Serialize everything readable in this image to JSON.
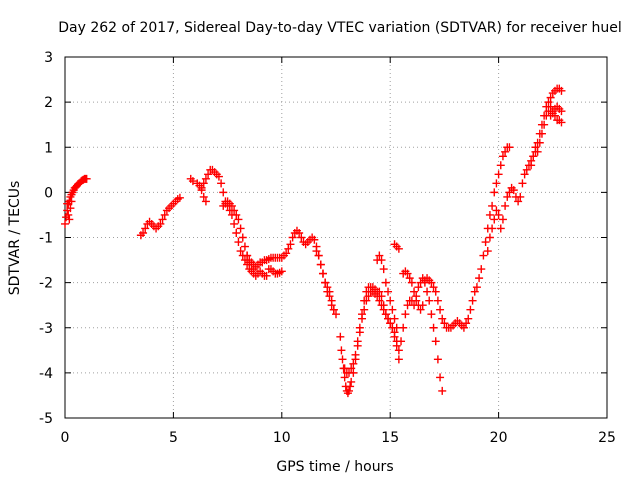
{
  "chart_data": {
    "type": "scatter",
    "title": "Day 262 of 2017, Sidereal Day-to-day VTEC variation (SDTVAR) for receiver huel",
    "xlabel": "GPS time / hours",
    "ylabel": "SDTVAR / TECUs",
    "xlim": [
      0,
      25
    ],
    "ylim": [
      -5,
      3
    ],
    "x_ticks": [
      0,
      5,
      10,
      15,
      20,
      25
    ],
    "y_ticks": [
      -5,
      -4,
      -3,
      -2,
      -1,
      0,
      1,
      2,
      3
    ],
    "grid": true,
    "marker": "+",
    "color": "#ff0000",
    "series": [
      {
        "x": [
          0.0,
          0.05,
          0.1,
          0.15,
          0.2,
          0.25,
          0.3,
          0.35,
          0.4,
          0.45,
          0.5,
          0.55,
          0.6,
          0.65,
          0.7,
          0.75,
          0.8,
          0.85,
          0.9,
          0.95,
          1.0
        ],
        "y": [
          -0.7,
          -0.55,
          -0.4,
          -0.25,
          -0.2,
          -0.1,
          -0.05,
          0.0,
          0.05,
          0.1,
          0.12,
          0.15,
          0.18,
          0.2,
          0.22,
          0.25,
          0.27,
          0.28,
          0.3,
          0.3,
          0.3
        ]
      },
      {
        "x": [
          0.1,
          0.15,
          0.2,
          0.25,
          0.3
        ],
        "y": [
          -0.25,
          -0.5,
          -0.6,
          -0.35,
          -0.2
        ]
      },
      {
        "x": [
          3.5,
          3.6,
          3.7,
          3.8,
          3.9,
          4.0,
          4.1,
          4.2,
          4.3,
          4.4,
          4.5,
          4.6,
          4.7,
          4.8,
          4.9,
          5.0,
          5.1,
          5.2,
          5.3
        ],
        "y": [
          -0.95,
          -0.9,
          -0.8,
          -0.7,
          -0.65,
          -0.7,
          -0.75,
          -0.8,
          -0.75,
          -0.7,
          -0.6,
          -0.5,
          -0.4,
          -0.35,
          -0.3,
          -0.25,
          -0.2,
          -0.15,
          -0.12
        ]
      },
      {
        "x": [
          5.8,
          5.9,
          6.1,
          6.2,
          6.3,
          6.4,
          6.5,
          6.6,
          6.7,
          6.8,
          6.9,
          7.0,
          7.1,
          7.2,
          7.3,
          7.4,
          7.5,
          7.6,
          7.7,
          7.8,
          7.9,
          8.0,
          8.1,
          8.2,
          8.3,
          8.4,
          8.5,
          8.6,
          8.7,
          8.8,
          8.9,
          9.0,
          9.1,
          9.2,
          9.3,
          9.4,
          9.5,
          9.6,
          9.7,
          9.8,
          9.9,
          10.0
        ],
        "y": [
          0.3,
          0.25,
          0.2,
          0.15,
          0.1,
          0.2,
          0.3,
          0.4,
          0.5,
          0.5,
          0.45,
          0.4,
          0.35,
          0.2,
          0.0,
          -0.2,
          -0.3,
          -0.4,
          -0.5,
          -0.7,
          -0.9,
          -1.1,
          -1.3,
          -1.4,
          -1.5,
          -1.6,
          -1.7,
          -1.75,
          -1.8,
          -1.85,
          -1.8,
          -1.75,
          -1.8,
          -1.85,
          -1.85,
          -1.7,
          -1.7,
          -1.75,
          -1.8,
          -1.8,
          -1.78,
          -1.75
        ]
      },
      {
        "x": [
          6.3,
          6.4,
          6.5,
          7.3,
          7.4,
          7.5,
          7.6,
          7.7,
          7.8,
          7.9,
          8.0,
          8.1,
          8.2,
          8.3,
          8.4,
          8.5,
          8.6,
          8.7
        ],
        "y": [
          0.05,
          -0.1,
          -0.2,
          -0.3,
          -0.25,
          -0.2,
          -0.25,
          -0.3,
          -0.4,
          -0.5,
          -0.6,
          -0.8,
          -1.0,
          -1.2,
          -1.4,
          -1.55,
          -1.6,
          -1.7
        ]
      },
      {
        "x": [
          8.4,
          8.5,
          8.6,
          8.7,
          8.8,
          8.9,
          9.0,
          9.1,
          9.2,
          9.3,
          9.4,
          9.5,
          9.6,
          9.7,
          9.8,
          9.9,
          10.0,
          10.1,
          10.2,
          10.3,
          10.4,
          10.5,
          10.6,
          10.7,
          10.8,
          10.9,
          11.0,
          11.1,
          11.2,
          11.3,
          11.4,
          11.5,
          11.6,
          11.7,
          11.8,
          11.9,
          12.0,
          12.1,
          12.2,
          12.3,
          12.4,
          12.5
        ],
        "y": [
          -1.4,
          -1.5,
          -1.55,
          -1.6,
          -1.65,
          -1.6,
          -1.55,
          -1.55,
          -1.5,
          -1.5,
          -1.48,
          -1.45,
          -1.45,
          -1.45,
          -1.45,
          -1.45,
          -1.45,
          -1.4,
          -1.35,
          -1.25,
          -1.15,
          -1.0,
          -0.9,
          -0.85,
          -0.9,
          -1.0,
          -1.1,
          -1.15,
          -1.1,
          -1.05,
          -1.0,
          -1.05,
          -1.2,
          -1.4,
          -1.6,
          -1.8,
          -2.0,
          -2.1,
          -2.2,
          -2.4,
          -2.6,
          -2.7
        ]
      },
      {
        "x": [
          11.6,
          11.7,
          11.8,
          11.9,
          12.0,
          12.1,
          12.2,
          12.3,
          12.4
        ],
        "y": [
          -1.3,
          -1.4,
          -1.6,
          -1.8,
          -2.0,
          -2.2,
          -2.3,
          -2.5,
          -2.6
        ]
      },
      {
        "x": [
          12.7,
          12.75,
          12.8,
          12.85,
          12.9,
          12.95,
          13.0,
          13.05,
          13.1,
          13.15,
          13.2,
          13.3,
          13.4,
          13.5,
          13.6,
          13.7,
          13.8,
          13.9,
          14.0,
          14.1,
          14.2,
          14.3,
          14.4,
          14.5,
          14.6,
          14.7,
          14.8,
          14.9,
          15.0,
          15.1,
          15.2,
          15.3,
          15.4
        ],
        "y": [
          -3.2,
          -3.5,
          -3.7,
          -3.9,
          -4.1,
          -4.3,
          -4.4,
          -4.45,
          -4.4,
          -4.3,
          -4.2,
          -4.0,
          -3.7,
          -3.3,
          -3.0,
          -2.7,
          -2.4,
          -2.2,
          -2.1,
          -2.1,
          -2.1,
          -2.15,
          -2.2,
          -2.2,
          -2.3,
          -2.5,
          -2.7,
          -2.8,
          -2.9,
          -3.0,
          -3.2,
          -3.4,
          -3.7
        ]
      },
      {
        "x": [
          12.9,
          13.0,
          13.1,
          13.2,
          13.3,
          13.4,
          13.5,
          13.6,
          13.7,
          13.8,
          13.9,
          14.0,
          14.1,
          14.2,
          14.3,
          14.4,
          14.5,
          14.6,
          14.7,
          14.8,
          14.9,
          15.0,
          15.1,
          15.2,
          15.3,
          15.4
        ],
        "y": [
          -3.9,
          -4.0,
          -4.0,
          -3.9,
          -3.8,
          -3.6,
          -3.4,
          -3.1,
          -2.8,
          -2.6,
          -2.4,
          -2.3,
          -2.2,
          -2.2,
          -2.25,
          -2.3,
          -2.4,
          -2.5,
          -2.6,
          -2.7,
          -2.8,
          -2.9,
          -3.0,
          -3.1,
          -3.3,
          -3.5
        ]
      },
      {
        "x": [
          14.4,
          14.5,
          14.6,
          14.7,
          14.8,
          14.9,
          15.0,
          15.1,
          15.2,
          15.3
        ],
        "y": [
          -1.5,
          -1.4,
          -1.5,
          -1.7,
          -2.0,
          -2.2,
          -2.4,
          -2.6,
          -2.8,
          -3.0
        ]
      },
      {
        "x": [
          15.2,
          15.3,
          15.4
        ],
        "y": [
          -1.15,
          -1.2,
          -1.25
        ]
      },
      {
        "x": [
          15.5,
          15.6,
          15.7,
          15.8,
          15.9,
          16.0,
          16.1,
          16.2,
          16.3,
          16.4,
          16.5,
          16.6,
          16.7,
          16.8,
          16.9,
          17.0,
          17.1,
          17.2,
          17.3,
          17.4
        ],
        "y": [
          -3.3,
          -3.0,
          -2.7,
          -2.5,
          -2.4,
          -2.4,
          -2.5,
          -2.3,
          -2.1,
          -2.0,
          -1.9,
          -2.0,
          -2.2,
          -2.4,
          -2.7,
          -3.0,
          -3.3,
          -3.7,
          -4.1,
          -4.4
        ]
      },
      {
        "x": [
          15.6,
          15.7,
          15.8,
          15.9,
          16.0,
          16.1,
          16.2,
          16.3,
          16.4,
          16.5
        ],
        "y": [
          -1.8,
          -1.75,
          -1.8,
          -1.9,
          -2.0,
          -2.2,
          -2.4,
          -2.5,
          -2.6,
          -2.5
        ]
      },
      {
        "x": [
          16.6,
          16.7,
          16.8,
          16.9,
          17.0,
          17.1,
          17.2,
          17.3,
          17.4,
          17.5,
          17.6,
          17.7,
          17.8,
          17.9,
          18.0,
          18.1,
          18.2,
          18.3,
          18.4,
          18.5,
          18.6,
          18.7,
          18.8,
          18.9,
          19.0,
          19.1,
          19.2,
          19.3,
          19.4,
          19.5,
          19.6,
          19.7,
          19.8,
          19.9,
          20.0,
          20.1,
          20.2,
          20.3,
          20.4,
          20.5
        ],
        "y": [
          -1.95,
          -1.9,
          -1.95,
          -2.0,
          -2.1,
          -2.2,
          -2.4,
          -2.6,
          -2.8,
          -2.9,
          -3.0,
          -3.0,
          -3.0,
          -2.95,
          -2.9,
          -2.85,
          -2.9,
          -2.95,
          -3.0,
          -2.9,
          -2.8,
          -2.6,
          -2.4,
          -2.2,
          -2.1,
          -1.9,
          -1.7,
          -1.4,
          -1.1,
          -0.8,
          -0.5,
          -0.3,
          0.0,
          0.2,
          0.4,
          0.6,
          0.8,
          0.9,
          1.0,
          1.0
        ]
      },
      {
        "x": [
          19.5,
          19.6,
          19.7,
          19.8,
          19.9,
          20.0,
          20.1,
          20.2,
          20.3,
          20.4,
          20.5,
          20.6,
          20.7,
          20.8,
          20.9,
          21.0,
          21.1,
          21.2,
          21.3,
          21.4,
          21.5,
          21.6,
          21.7,
          21.8,
          21.9,
          22.0,
          22.1,
          22.2,
          22.3,
          22.4,
          22.5,
          22.6,
          22.7,
          22.8,
          22.9
        ],
        "y": [
          -1.3,
          -1.0,
          -0.8,
          -0.6,
          -0.4,
          -0.5,
          -0.8,
          -0.6,
          -0.3,
          -0.1,
          0.0,
          0.1,
          0.05,
          -0.1,
          -0.2,
          -0.1,
          0.2,
          0.4,
          0.5,
          0.6,
          0.7,
          0.8,
          0.9,
          1.1,
          1.3,
          1.5,
          1.7,
          1.9,
          2.0,
          2.1,
          2.2,
          2.25,
          2.3,
          2.3,
          2.25
        ]
      },
      {
        "x": [
          21.5,
          21.6,
          21.7,
          21.8,
          21.9,
          22.0,
          22.1,
          22.2,
          22.3,
          22.4,
          22.5,
          22.6,
          22.7,
          22.8,
          22.9
        ],
        "y": [
          0.6,
          0.8,
          1.0,
          0.9,
          1.1,
          1.3,
          1.5,
          1.7,
          1.8,
          1.9,
          1.8,
          1.7,
          1.6,
          1.6,
          1.55
        ]
      },
      {
        "x": [
          22.4,
          22.5,
          22.6,
          22.7,
          22.8,
          22.9
        ],
        "y": [
          1.7,
          1.75,
          1.85,
          1.9,
          1.85,
          1.8
        ]
      }
    ]
  }
}
